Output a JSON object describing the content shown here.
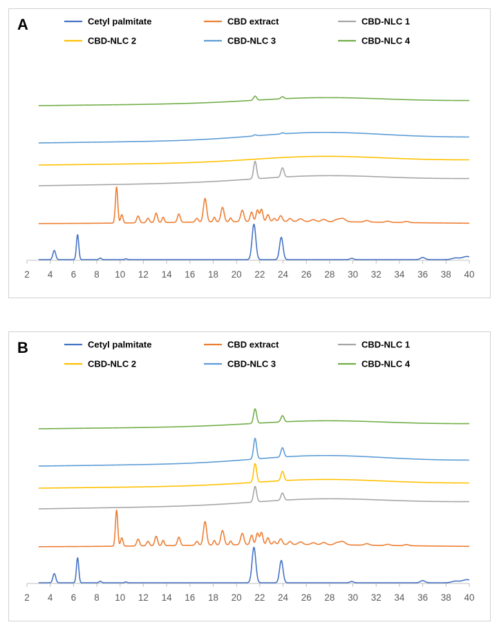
{
  "chart_data": [
    {
      "type": "line",
      "panel_label": "A",
      "xlabel": "",
      "ylabel": "",
      "xlim": [
        2,
        40
      ],
      "x_ticks": [
        "2",
        "4",
        "6",
        "8",
        "10",
        "12",
        "14",
        "16",
        "18",
        "20",
        "22",
        "24",
        "26",
        "28",
        "30",
        "32",
        "34",
        "36",
        "38",
        "40"
      ],
      "legend_position": "top",
      "series": [
        {
          "name": "Cetyl palmitate",
          "color": "#4472c4",
          "pattern": "cetyl"
        },
        {
          "name": "CBD extract",
          "color": "#ed7d31",
          "pattern": "cbd"
        },
        {
          "name": "CBD-NLC 1",
          "color": "#a5a5a5",
          "pattern": "nlc",
          "peak_21_6": 0.85,
          "peak_23_9": 0.45
        },
        {
          "name": "CBD-NLC 2",
          "color": "#ffc000",
          "pattern": "nlc",
          "peak_21_6": 0.0,
          "peak_23_9": 0.0
        },
        {
          "name": "CBD-NLC 3",
          "color": "#5b9bd5",
          "pattern": "nlc",
          "peak_21_6": 0.05,
          "peak_23_9": 0.05
        },
        {
          "name": "CBD-NLC 4",
          "color": "#70ad47",
          "pattern": "nlc",
          "peak_21_6": 0.2,
          "peak_23_9": 0.1
        }
      ]
    },
    {
      "type": "line",
      "panel_label": "B",
      "xlabel": "",
      "ylabel": "",
      "xlim": [
        2,
        40
      ],
      "x_ticks": [
        "2",
        "4",
        "6",
        "8",
        "10",
        "12",
        "14",
        "16",
        "18",
        "20",
        "22",
        "24",
        "26",
        "28",
        "30",
        "32",
        "34",
        "36",
        "38",
        "40"
      ],
      "legend_position": "top",
      "series": [
        {
          "name": "Cetyl palmitate",
          "color": "#4472c4",
          "pattern": "cetyl"
        },
        {
          "name": "CBD extract",
          "color": "#ed7d31",
          "pattern": "cbd"
        },
        {
          "name": "CBD-NLC 1",
          "color": "#a5a5a5",
          "pattern": "nlc",
          "peak_21_6": 0.75,
          "peak_23_9": 0.35
        },
        {
          "name": "CBD-NLC 2",
          "color": "#ffc000",
          "pattern": "nlc",
          "peak_21_6": 0.9,
          "peak_23_9": 0.45
        },
        {
          "name": "CBD-NLC 3",
          "color": "#5b9bd5",
          "pattern": "nlc",
          "peak_21_6": 1.0,
          "peak_23_9": 0.45
        },
        {
          "name": "CBD-NLC 4",
          "color": "#70ad47",
          "pattern": "nlc",
          "peak_21_6": 0.7,
          "peak_23_9": 0.3
        }
      ]
    }
  ]
}
